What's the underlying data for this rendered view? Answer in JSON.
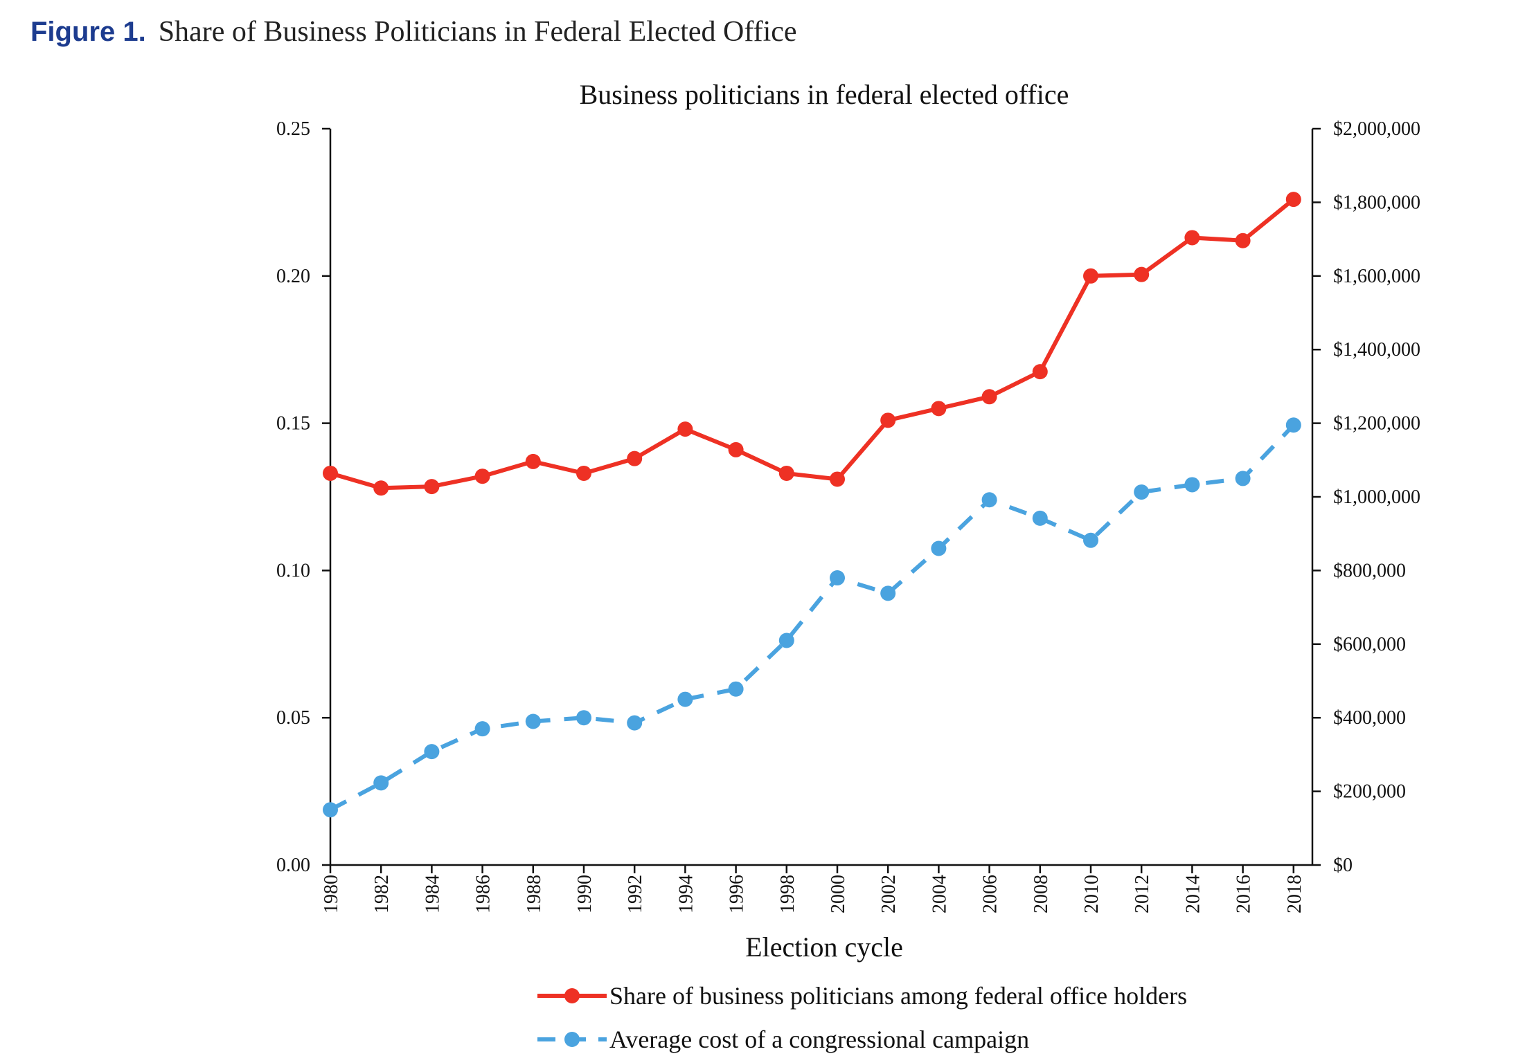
{
  "figure": {
    "label": "Figure 1.",
    "caption": "Share of Business Politicians in Federal Elected Office"
  },
  "colors": {
    "share_series": "#ee3124",
    "cost_series": "#4aa3df",
    "axis": "#111111",
    "figure_label": "#1d3c8f"
  },
  "chart_data": {
    "type": "line",
    "title": "Business politicians in federal elected office",
    "xlabel": "Election cycle",
    "ylabel": "",
    "y2label": "",
    "grid": false,
    "legend_position": "bottom",
    "categories": [
      "1980",
      "1982",
      "1984",
      "1986",
      "1988",
      "1990",
      "1992",
      "1994",
      "1996",
      "1998",
      "2000",
      "2002",
      "2004",
      "2006",
      "2008",
      "2010",
      "2012",
      "2014",
      "2016",
      "2018"
    ],
    "ylim": [
      0,
      0.25
    ],
    "yticks": [
      "0.00",
      "0.05",
      "0.10",
      "0.15",
      "0.20",
      "0.25"
    ],
    "y2lim": [
      0,
      2000000
    ],
    "y2ticks": [
      "$0",
      "$200,000",
      "$400,000",
      "$600,000",
      "$800,000",
      "$1,000,000",
      "$1,200,000",
      "$1,400,000",
      "$1,600,000",
      "$1,800,000",
      "$2,000,000"
    ],
    "series": [
      {
        "name": "Share of business politicians among federal office holders",
        "axis": "left",
        "style": "solid",
        "values": [
          0.133,
          0.128,
          0.1285,
          0.132,
          0.137,
          0.133,
          0.138,
          0.148,
          0.141,
          0.133,
          0.131,
          0.151,
          0.155,
          0.159,
          0.1675,
          0.2,
          0.2005,
          0.213,
          0.212,
          0.226
        ]
      },
      {
        "name": "Average cost of a congressional campaign",
        "axis": "right",
        "style": "dashed",
        "values": [
          150000,
          223000,
          308000,
          370000,
          390000,
          400000,
          386000,
          450000,
          478000,
          610000,
          780000,
          738000,
          860000,
          992000,
          942000,
          882000,
          1013000,
          1033000,
          1050000,
          1195000
        ]
      }
    ]
  }
}
